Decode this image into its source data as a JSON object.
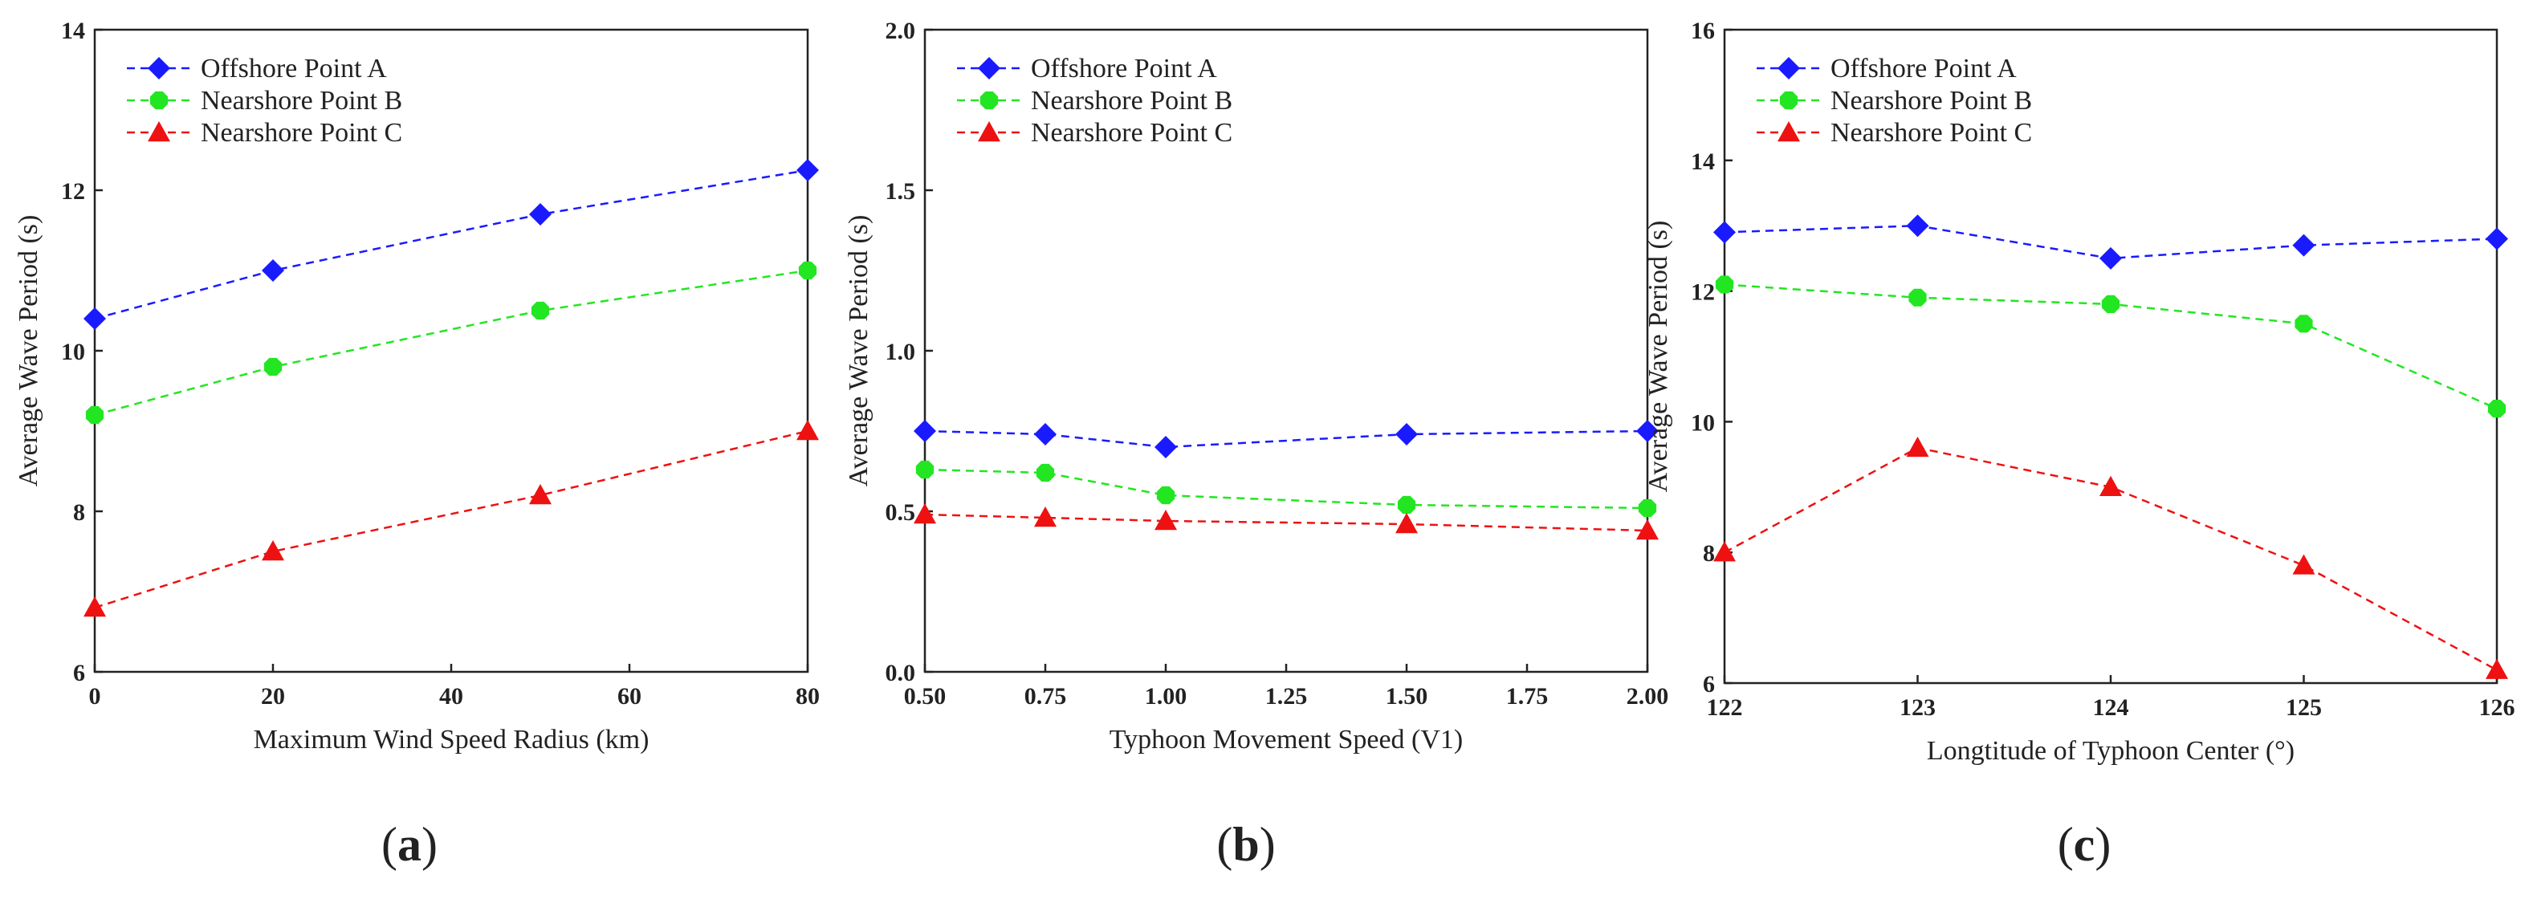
{
  "figure": {
    "panel_labels": [
      {
        "open": "(",
        "letter": "a",
        "close": ")"
      },
      {
        "open": "(",
        "letter": "b",
        "close": ")"
      },
      {
        "open": "(",
        "letter": "c",
        "close": ")"
      }
    ]
  },
  "colors": {
    "offshore_a": "#1a1aff",
    "nearshore_b": "#22e622",
    "nearshore_c": "#ee1111",
    "axis": "#222222"
  },
  "chart_data": [
    {
      "type": "line",
      "title": "",
      "xlabel": "Maximum Wind Speed Radius (km)",
      "ylabel": "Average Wave Period (s)",
      "xlim": [
        0,
        80
      ],
      "ylim": [
        6,
        14
      ],
      "xticks": [
        0,
        20,
        40,
        60,
        80
      ],
      "xtick_labels": [
        "0",
        "20",
        "40",
        "60",
        "80"
      ],
      "yticks": [
        6,
        8,
        10,
        12,
        14
      ],
      "ytick_labels": [
        "6",
        "8",
        "10",
        "12",
        "14"
      ],
      "legend_position": "top-left",
      "x": [
        0,
        20,
        50,
        80
      ],
      "series": [
        {
          "name": "Offshore Point A",
          "marker": "diamond",
          "color_key": "offshore_a",
          "values": [
            10.4,
            11.0,
            11.7,
            12.25
          ]
        },
        {
          "name": "Nearshore Point B",
          "marker": "hexagon",
          "color_key": "nearshore_b",
          "values": [
            9.2,
            9.8,
            10.5,
            11.0
          ]
        },
        {
          "name": "Nearshore Point C",
          "marker": "triangle",
          "color_key": "nearshore_c",
          "values": [
            6.8,
            7.5,
            8.2,
            9.0
          ]
        }
      ]
    },
    {
      "type": "line",
      "title": "",
      "xlabel": "Typhoon Movement Speed (V1)",
      "ylabel": "Average Wave Period (s)",
      "xlim": [
        0.5,
        2.0
      ],
      "ylim": [
        0,
        2
      ],
      "xticks": [
        0.5,
        0.75,
        1.0,
        1.25,
        1.5,
        1.75,
        2.0
      ],
      "xtick_labels": [
        "0.50",
        "0.75",
        "1.00",
        "1.25",
        "1.50",
        "1.75",
        "2.00"
      ],
      "yticks": [
        0,
        0.5,
        1.0,
        1.5,
        2.0
      ],
      "ytick_labels": [
        "0.0",
        "0.5",
        "1.0",
        "1.5",
        "2.0"
      ],
      "legend_position": "top-left",
      "x": [
        0.5,
        0.75,
        1.0,
        1.5,
        2.0
      ],
      "series": [
        {
          "name": "Offshore Point A",
          "marker": "diamond",
          "color_key": "offshore_a",
          "values": [
            0.75,
            0.74,
            0.7,
            0.74,
            0.75
          ]
        },
        {
          "name": "Nearshore Point B",
          "marker": "hexagon",
          "color_key": "nearshore_b",
          "values": [
            0.63,
            0.62,
            0.55,
            0.52,
            0.51
          ]
        },
        {
          "name": "Nearshore Point C",
          "marker": "triangle",
          "color_key": "nearshore_c",
          "values": [
            0.49,
            0.48,
            0.47,
            0.46,
            0.44
          ]
        }
      ]
    },
    {
      "type": "line",
      "title": "",
      "xlabel": "Longtitude of Typhoon Center (°)",
      "ylabel": "Average Wave Period (s)",
      "xlim": [
        122,
        126
      ],
      "ylim": [
        6,
        16
      ],
      "xticks": [
        122,
        123,
        124,
        125,
        126
      ],
      "xtick_labels": [
        "122",
        "123",
        "124",
        "125",
        "126"
      ],
      "yticks": [
        6,
        8,
        10,
        12,
        14,
        16
      ],
      "ytick_labels": [
        "6",
        "8",
        "10",
        "12",
        "14",
        "16"
      ],
      "legend_position": "top-left",
      "x": [
        122,
        123,
        124,
        125,
        126
      ],
      "series": [
        {
          "name": "Offshore Point A",
          "marker": "diamond",
          "color_key": "offshore_a",
          "values": [
            12.9,
            13.0,
            12.5,
            12.7,
            12.8
          ]
        },
        {
          "name": "Nearshore Point B",
          "marker": "hexagon",
          "color_key": "nearshore_b",
          "values": [
            12.1,
            11.9,
            11.8,
            11.5,
            10.2
          ]
        },
        {
          "name": "Nearshore Point C",
          "marker": "triangle",
          "color_key": "nearshore_c",
          "values": [
            8.0,
            9.6,
            9.0,
            7.8,
            6.2
          ]
        }
      ]
    }
  ]
}
